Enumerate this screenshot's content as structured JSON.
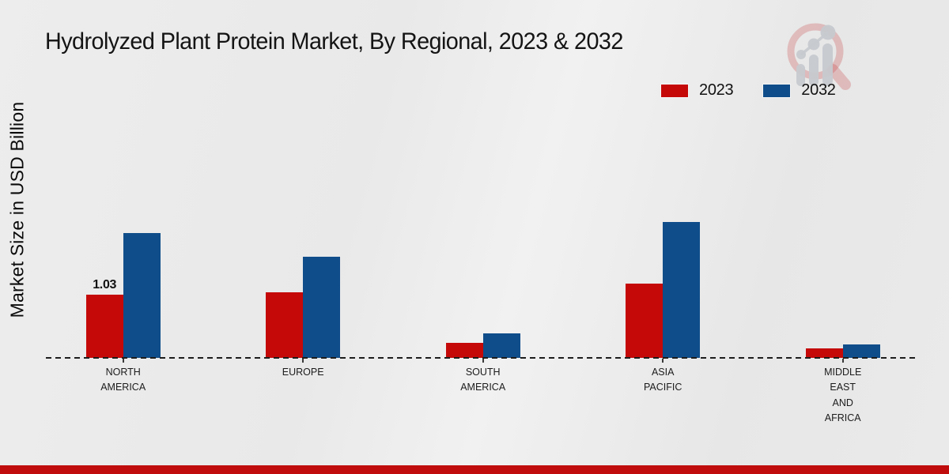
{
  "title": "Hydrolyzed Plant Protein Market, By Regional, 2023 & 2032",
  "y_axis_label": "Market Size in USD Billion",
  "legend": {
    "items": [
      {
        "label": "2023",
        "color": "#c50909"
      },
      {
        "label": "2032",
        "color": "#0f4d8a"
      }
    ]
  },
  "annotation": {
    "text": "1.03",
    "series": "2023",
    "category": "NORTH AMERICA"
  },
  "colors": {
    "series_2023": "#c50909",
    "series_2032": "#0f4d8a",
    "footer_band": "#c00c0c",
    "baseline": "#1d1d1d",
    "background": "#eaeaea"
  },
  "chart_data": {
    "type": "bar",
    "title": "Hydrolyzed Plant Protein Market, By Regional, 2023 & 2032",
    "xlabel": "",
    "ylabel": "Market Size in USD Billion",
    "categories": [
      "NORTH AMERICA",
      "EUROPE",
      "SOUTH AMERICA",
      "ASIA PACIFIC",
      "MIDDLE EAST AND AFRICA"
    ],
    "category_lines": [
      [
        "NORTH",
        "AMERICA"
      ],
      [
        "EUROPE"
      ],
      [
        "SOUTH",
        "AMERICA"
      ],
      [
        "ASIA",
        "PACIFIC"
      ],
      [
        "MIDDLE",
        "EAST",
        "AND",
        "AFRICA"
      ]
    ],
    "series": [
      {
        "name": "2023",
        "color": "#c50909",
        "values": [
          1.03,
          1.06,
          0.24,
          1.2,
          0.15
        ]
      },
      {
        "name": "2032",
        "color": "#0f4d8a",
        "values": [
          2.03,
          1.64,
          0.4,
          2.21,
          0.22
        ]
      }
    ],
    "data_labels": [
      {
        "series": "2023",
        "category": "NORTH AMERICA",
        "text": "1.03"
      }
    ],
    "ylim": [
      0,
      2.5
    ],
    "grid": false,
    "baseline_style": "dashed",
    "legend_position": "top-right"
  }
}
